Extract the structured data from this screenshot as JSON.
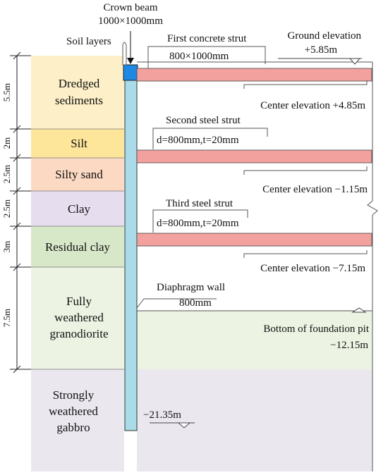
{
  "title_labels": {
    "crown_beam": "Crown beam",
    "crown_beam_size": "1000×1000mm",
    "soil_layers": "Soil layers"
  },
  "soil_layers": [
    {
      "name_lines": [
        "Dredged",
        "sediments"
      ],
      "thickness": "5.5m",
      "color": "#fdf0c8"
    },
    {
      "name_lines": [
        "Silt"
      ],
      "thickness": "2m",
      "color": "#fde59a"
    },
    {
      "name_lines": [
        "Silty sand"
      ],
      "thickness": "2.5m",
      "color": "#fcd9c3"
    },
    {
      "name_lines": [
        "Clay"
      ],
      "thickness": "2.5m",
      "color": "#e6ddee"
    },
    {
      "name_lines": [
        "Residual clay"
      ],
      "thickness": "3m",
      "color": "#d7e8c9"
    },
    {
      "name_lines": [
        "Fully",
        "weathered",
        "granodiorite"
      ],
      "thickness": "7.5m",
      "color": "#ecf3e2"
    },
    {
      "name_lines": [
        "Strongly",
        "weathered",
        "gabbro"
      ],
      "thickness": "",
      "color": "#ebe7ef"
    }
  ],
  "struts": [
    {
      "title": "First concrete strut",
      "size": "800×1000mm",
      "center": "Center elevation +4.85m"
    },
    {
      "title": "Second steel strut",
      "size": "d=800mm,t=20mm",
      "center": "Center elevation −1.15m"
    },
    {
      "title": "Third steel strut",
      "size": "d=800mm,t=20mm",
      "center": "Center elevation −7.15m"
    }
  ],
  "ground": {
    "label": "Ground elevation",
    "value": "+5.85m"
  },
  "wall": {
    "label": "Diaphragm wall",
    "size": "800mm",
    "bottom": "−21.35m"
  },
  "pit": {
    "label": "Bottom of foundation pit",
    "value": "−12.15m"
  },
  "colors": {
    "strut": "#f3a19e",
    "wall": "#a9dce8",
    "crown_beam": "#1e88e5",
    "line": "#333333"
  }
}
